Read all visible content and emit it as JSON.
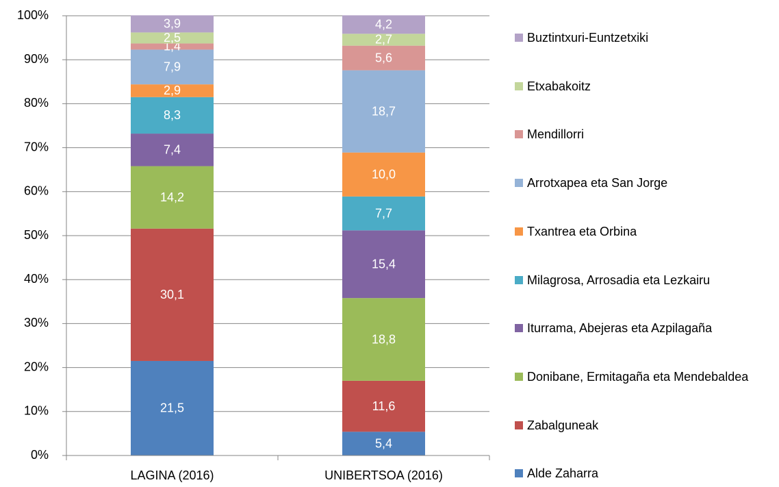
{
  "chart_data": {
    "type": "stacked_bar",
    "categories": [
      "LAGINA (2016)",
      "UNIBERTSOA (2016)"
    ],
    "series": [
      {
        "name": "Alde Zaharra",
        "color": "#4f81bd",
        "values": [
          21.5,
          5.4
        ],
        "value_labels": [
          "21,5",
          "5,4"
        ]
      },
      {
        "name": "Zabalguneak",
        "color": "#c0504d",
        "values": [
          30.1,
          11.6
        ],
        "value_labels": [
          "30,1",
          "11,6"
        ]
      },
      {
        "name": "Donibane, Ermitagaña eta Mendebaldea",
        "color": "#9bbb59",
        "values": [
          14.2,
          18.8
        ],
        "value_labels": [
          "14,2",
          "18,8"
        ]
      },
      {
        "name": "Iturrama, Abejeras eta Azpilagaña",
        "color": "#8064a2",
        "values": [
          7.4,
          15.4
        ],
        "value_labels": [
          "7,4",
          "15,4"
        ]
      },
      {
        "name": "Milagrosa, Arrosadia eta Lezkairu",
        "color": "#4bacc6",
        "values": [
          8.3,
          7.7
        ],
        "value_labels": [
          "8,3",
          "7,7"
        ]
      },
      {
        "name": "Txantrea eta Orbina",
        "color": "#f79646",
        "values": [
          2.9,
          10.0
        ],
        "value_labels": [
          "2,9",
          "10,0"
        ]
      },
      {
        "name": "Arrotxapea eta San Jorge",
        "color": "#95b3d7",
        "values": [
          7.9,
          18.7
        ],
        "value_labels": [
          "7,9",
          "18,7"
        ]
      },
      {
        "name": "Mendillorri",
        "color": "#d99694",
        "values": [
          1.4,
          5.6
        ],
        "value_labels": [
          "1,4",
          "5,6"
        ]
      },
      {
        "name": "Etxabakoitz",
        "color": "#c3d69b",
        "values": [
          2.5,
          2.7
        ],
        "value_labels": [
          "2,5",
          "2,7"
        ]
      },
      {
        "name": "Buztintxuri-Euntzetxiki",
        "color": "#b3a2c7",
        "values": [
          3.9,
          4.2
        ],
        "value_labels": [
          "3,9",
          "4,2"
        ]
      }
    ],
    "ylim": [
      0,
      100
    ],
    "yticks": [
      {
        "value": 0,
        "label": "0%"
      },
      {
        "value": 10,
        "label": "10%"
      },
      {
        "value": 20,
        "label": "20%"
      },
      {
        "value": 30,
        "label": "30%"
      },
      {
        "value": 40,
        "label": "40%"
      },
      {
        "value": 50,
        "label": "50%"
      },
      {
        "value": 60,
        "label": "60%"
      },
      {
        "value": 70,
        "label": "70%"
      },
      {
        "value": 80,
        "label": "80%"
      },
      {
        "value": 90,
        "label": "90%"
      },
      {
        "value": 100,
        "label": "100%"
      }
    ],
    "grid": true,
    "legend": "right"
  }
}
